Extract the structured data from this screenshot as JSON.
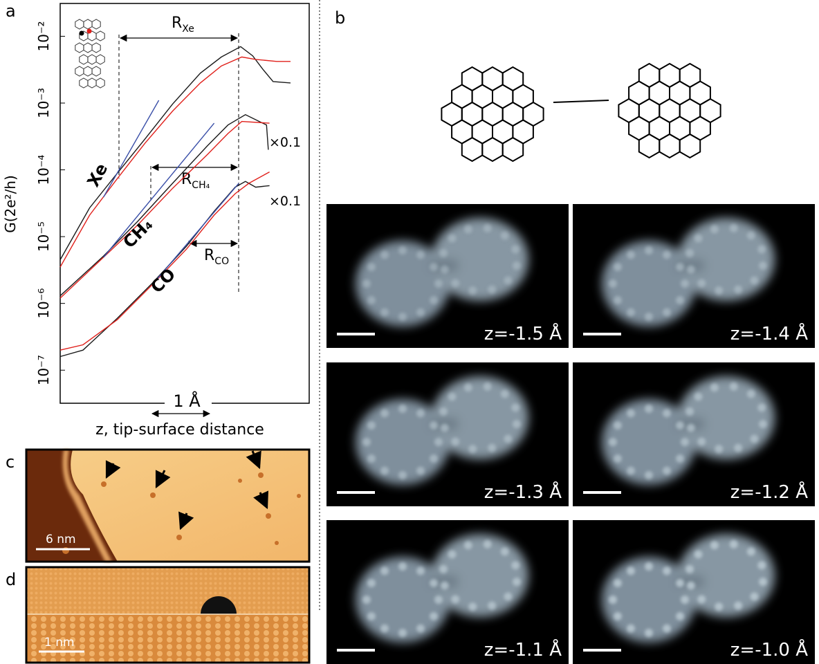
{
  "chart_data": {
    "type": "line",
    "y_label": "G(2e²/h)",
    "x_label": "z, tip-surface distance",
    "log_y": true,
    "xlim": [
      0,
      4.14
    ],
    "ylim": [
      3.2e-08,
      0.031
    ],
    "yticks": [
      {
        "value": 0.01,
        "label": "10⁻²"
      },
      {
        "value": 0.001,
        "label": "10⁻³"
      },
      {
        "value": 0.0001,
        "label": "10⁻⁴"
      },
      {
        "value": 1e-05,
        "label": "10⁻⁵"
      },
      {
        "value": 1e-06,
        "label": "10⁻⁶"
      },
      {
        "value": 1e-07,
        "label": "10⁻⁷"
      }
    ],
    "series": [
      {
        "name": "Xe",
        "color": "#1a1a1a",
        "x": [
          0,
          0.49,
          0.95,
          1.41,
          1.87,
          2.33,
          2.68,
          3.0,
          3.2,
          3.37,
          3.54,
          3.83
        ],
        "values": [
          4.5e-06,
          2.7e-05,
          8.9e-05,
          0.00029,
          0.00097,
          0.0028,
          0.0049,
          0.007,
          0.0051,
          0.0032,
          0.0021,
          0.002
        ]
      },
      {
        "color": "#e0201b",
        "x": [
          0,
          0.49,
          0.95,
          1.41,
          1.87,
          2.33,
          2.68,
          3.02,
          3.25,
          3.6,
          3.83
        ],
        "values": [
          3.5e-06,
          2.1e-05,
          7.4e-05,
          0.00025,
          0.00076,
          0.002,
          0.0036,
          0.0049,
          0.0045,
          0.0042,
          0.0042
        ]
      },
      {
        "color": "#3a4fa8",
        "x": [
          0.72,
          1.64
        ],
        "values": [
          3.9e-05,
          0.0011
        ]
      },
      {
        "name": "CH₄",
        "color": "#1a1a1a",
        "x": [
          0,
          0.72,
          1.29,
          1.87,
          2.45,
          2.79,
          3.08,
          3.31,
          3.43,
          3.46
        ],
        "values": [
          1.3e-06,
          5.1e-06,
          1.7e-05,
          6.3e-05,
          0.00023,
          0.00047,
          0.00067,
          0.00053,
          0.00047,
          0.0002
        ]
      },
      {
        "color": "#e0201b",
        "x": [
          0,
          0.72,
          1.29,
          1.87,
          2.45,
          2.79,
          3.02,
          3.48
        ],
        "values": [
          1.2e-06,
          4.9e-06,
          1.5e-05,
          5.3e-05,
          0.00017,
          0.00035,
          0.00053,
          0.0005
        ]
      },
      {
        "color": "#3a4fa8",
        "x": [
          0.72,
          2.56
        ],
        "values": [
          4.9e-06,
          0.0005
        ]
      },
      {
        "name": "CO",
        "color": "#1a1a1a",
        "x": [
          0,
          0.38,
          0.95,
          1.53,
          2.1,
          2.56,
          2.91,
          3.08,
          3.25,
          3.48
        ],
        "values": [
          1.6e-07,
          2e-07,
          6e-07,
          2e-06,
          7.2e-06,
          2.4e-05,
          5.5e-05,
          6.7e-05,
          5.5e-05,
          5.8e-05
        ]
      },
      {
        "color": "#e0201b",
        "x": [
          0,
          0.38,
          0.95,
          1.53,
          2.1,
          2.56,
          2.91,
          3.14,
          3.48
        ],
        "values": [
          2e-07,
          2.4e-07,
          5.7e-07,
          1.9e-06,
          6.5e-06,
          2.1e-05,
          4.4e-05,
          6.3e-05,
          9.3e-05
        ]
      },
      {
        "color": "#3a4fa8",
        "x": [
          1.53,
          2.97
        ],
        "values": [
          1.9e-06,
          6.3e-05
        ]
      }
    ],
    "annotations": {
      "r_xe": {
        "text": "R",
        "sub": "Xe"
      },
      "r_ch4": {
        "text": "R",
        "sub": "CH₄"
      },
      "r_co": {
        "text": "R",
        "sub": "CO"
      },
      "scale_factor_1": "×0.1",
      "scale_factor_2": "×0.1",
      "scale_bar": "1 Å"
    }
  },
  "panels": {
    "a": "a",
    "b": "b",
    "c": "c",
    "d": "d"
  },
  "stm_images": [
    "z=-1.5 Å",
    "z=-1.4 Å",
    "z=-1.3 Å",
    "z=-1.2 Å",
    "z=-1.1 Å",
    "z=-1.0 Å"
  ],
  "panel_c": {
    "scale_bar": "6 nm"
  },
  "panel_d": {
    "scale_bar": "1 nm"
  }
}
